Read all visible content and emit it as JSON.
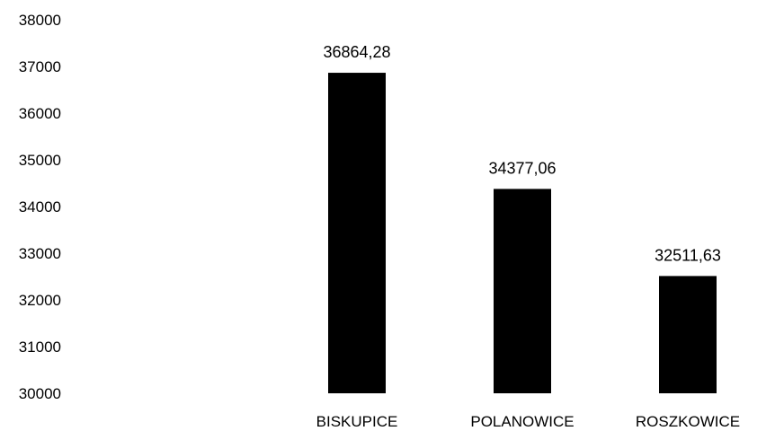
{
  "chart_data": {
    "type": "bar",
    "title": "",
    "xlabel": "",
    "ylabel": "",
    "categories": [
      "BISKUPICE",
      "POLANOWICE",
      "ROSZKOWICE"
    ],
    "values": [
      36864.28,
      34377.06,
      32511.63
    ],
    "value_labels": [
      "36864,28",
      "34377,06",
      "32511,63"
    ],
    "ylim": [
      30000,
      38000
    ],
    "yticks": [
      30000,
      31000,
      32000,
      33000,
      34000,
      35000,
      36000,
      37000,
      38000
    ],
    "ytick_labels": [
      "30000",
      "31000",
      "32000",
      "33000",
      "34000",
      "35000",
      "36000",
      "37000",
      "38000"
    ],
    "bar_color": "#000000",
    "grid": false,
    "legend": "none"
  }
}
